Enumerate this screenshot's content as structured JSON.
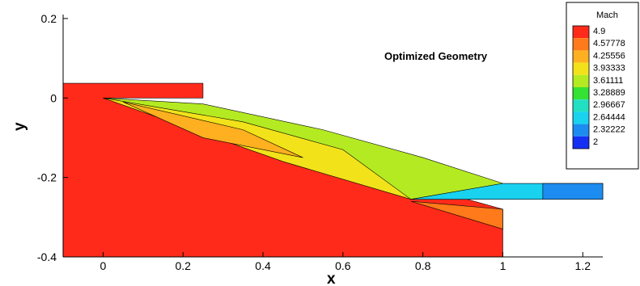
{
  "chart_data": {
    "type": "heatmap",
    "title": "Optimized Geometry",
    "xlabel": "x",
    "ylabel": "y",
    "xlim": [
      -0.1,
      1.25
    ],
    "ylim": [
      -0.4,
      0.21
    ],
    "x_ticks": [
      "0",
      "0.2",
      "0.4",
      "0.6",
      "0.8",
      "1",
      "1.2"
    ],
    "x_tick_values": [
      0,
      0.2,
      0.4,
      0.6,
      0.8,
      1,
      1.2
    ],
    "y_ticks": [
      "0.2",
      "0",
      "-0.2",
      "-0.4"
    ],
    "y_tick_values": [
      0.2,
      0,
      -0.2,
      -0.4
    ],
    "legend": {
      "title": "Mach",
      "placement": "top-right",
      "levels": [
        "4.9",
        "4.57778",
        "4.25556",
        "3.93333",
        "3.61111",
        "3.28889",
        "2.96667",
        "2.64444",
        "2.32222",
        "2"
      ],
      "colors": [
        "#ff2a1a",
        "#ff7a1a",
        "#ffb020",
        "#f2e21a",
        "#b4ea22",
        "#33e233",
        "#22dfc2",
        "#19d2f0",
        "#1d8cf0",
        "#1530f2"
      ]
    },
    "regions": [
      {
        "level": "4.9",
        "polygon": [
          [
            -0.1,
            0.037
          ],
          [
            0.25,
            0.037
          ],
          [
            0.25,
            0
          ],
          [
            0,
            0
          ],
          [
            1,
            -0.28
          ],
          [
            1,
            -0.4
          ],
          [
            -0.1,
            -0.4
          ]
        ]
      },
      {
        "level": "3.61111",
        "polygon": [
          [
            0,
            0
          ],
          [
            0.25,
            -0.015
          ],
          [
            0.55,
            -0.08
          ],
          [
            0.8,
            -0.15
          ],
          [
            1,
            -0.215
          ],
          [
            0.77,
            -0.255
          ]
        ]
      },
      {
        "level": "3.93333",
        "polygon": [
          [
            0,
            0
          ],
          [
            0.35,
            -0.06
          ],
          [
            0.6,
            -0.13
          ],
          [
            0.77,
            -0.255
          ],
          [
            0.45,
            -0.16
          ]
        ]
      },
      {
        "level": "4.25556",
        "polygon": [
          [
            0.05,
            -0.01
          ],
          [
            0.35,
            -0.08
          ],
          [
            0.5,
            -0.15
          ],
          [
            0.25,
            -0.1
          ]
        ]
      },
      {
        "level": "4.57778",
        "polygon": [
          [
            0.77,
            -0.26
          ],
          [
            1,
            -0.28
          ],
          [
            1,
            -0.33
          ]
        ]
      },
      {
        "level": "2.64444",
        "polygon": [
          [
            0.77,
            -0.255
          ],
          [
            1,
            -0.215
          ],
          [
            1.25,
            -0.215
          ],
          [
            1.25,
            -0.255
          ]
        ]
      },
      {
        "level": "2.32222",
        "polygon": [
          [
            1.1,
            -0.215
          ],
          [
            1.25,
            -0.215
          ],
          [
            1.25,
            -0.255
          ],
          [
            1.1,
            -0.255
          ]
        ]
      }
    ]
  }
}
